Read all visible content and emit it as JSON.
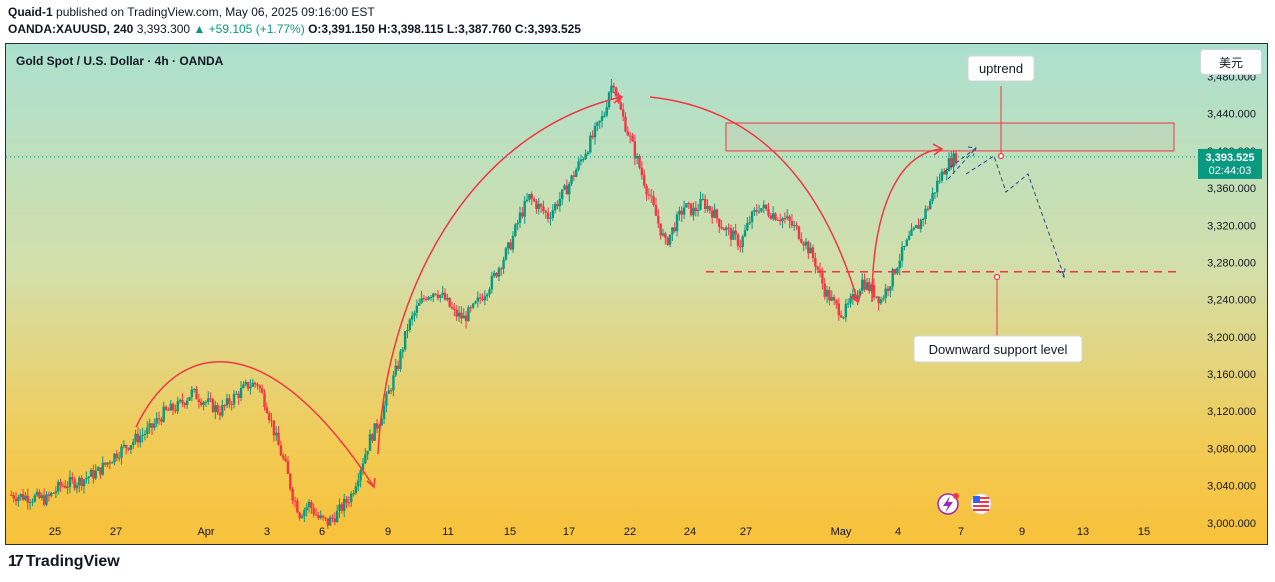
{
  "header": {
    "line1_author": "Quaid-1",
    "line1_rest": "published on TradingView.com, May 06, 2025 09:16:00 EST",
    "symbol": "OANDA:XAUUSD, 240",
    "last": "3,393.300",
    "change": "▲ +59.105 (+1.77%)",
    "o": "O:3,391.150",
    "h": "H:3,398.115",
    "l": "L:3,387.760",
    "c": "C:3,393.525"
  },
  "chart_title": "Gold Spot / U.S. Dollar · 4h · OANDA",
  "currency_button": "美元",
  "price_badge": {
    "price": "3,393.525",
    "countdown": "02:44:03"
  },
  "annotations": {
    "uptrend_label": "uptrend",
    "support_label": "Downward support level"
  },
  "footer": {
    "logo_text": "TradingView"
  },
  "colors": {
    "up": "#089981",
    "down": "#f23645",
    "drawing": "#f23645",
    "projection": "#2a4a8a",
    "badge": "#089981"
  },
  "chart_data": {
    "type": "candlestick",
    "title": "Gold Spot / U.S. Dollar · 4h · OANDA",
    "ylim": [
      2975,
      3515
    ],
    "y_ticks": [
      3000,
      3040,
      3080,
      3120,
      3160,
      3200,
      3240,
      3280,
      3320,
      3360,
      3400,
      3440,
      3480
    ],
    "y_tick_labels": [
      "3,000.000",
      "3,040.000",
      "3,080.000",
      "3,120.000",
      "3,160.000",
      "3,200.000",
      "3,240.000",
      "3,280.000",
      "3,320.000",
      "3,360.000",
      "3,400.000",
      "3,440.000",
      "3,480.000"
    ],
    "x_tick_labels": [
      "25",
      "27",
      "Apr",
      "3",
      "6",
      "9",
      "11",
      "15",
      "17",
      "22",
      "24",
      "27",
      "May",
      "4",
      "7",
      "9",
      "13",
      "15"
    ],
    "last_price": 3393.525,
    "resistance_zone": [
      3400,
      3430
    ],
    "support_level": 3270,
    "close_path": [
      [
        0,
        3030
      ],
      [
        8,
        3028
      ],
      [
        16,
        3025
      ],
      [
        22,
        3040
      ],
      [
        30,
        3045
      ],
      [
        38,
        3055
      ],
      [
        46,
        3075
      ],
      [
        54,
        3090
      ],
      [
        60,
        3100
      ],
      [
        66,
        3118
      ],
      [
        72,
        3125
      ],
      [
        78,
        3140
      ],
      [
        84,
        3130
      ],
      [
        90,
        3120
      ],
      [
        96,
        3135
      ],
      [
        102,
        3148
      ],
      [
        106,
        3150
      ],
      [
        110,
        3125
      ],
      [
        114,
        3090
      ],
      [
        118,
        3060
      ],
      [
        121,
        3030
      ],
      [
        124,
        3010
      ],
      [
        128,
        3020
      ],
      [
        132,
        3005
      ],
      [
        136,
        3000
      ],
      [
        140,
        3010
      ],
      [
        146,
        3030
      ],
      [
        150,
        3060
      ],
      [
        154,
        3090
      ],
      [
        158,
        3110
      ],
      [
        162,
        3140
      ],
      [
        166,
        3170
      ],
      [
        170,
        3210
      ],
      [
        174,
        3230
      ],
      [
        178,
        3245
      ],
      [
        182,
        3250
      ],
      [
        186,
        3240
      ],
      [
        190,
        3225
      ],
      [
        194,
        3220
      ],
      [
        198,
        3230
      ],
      [
        202,
        3245
      ],
      [
        206,
        3260
      ],
      [
        210,
        3280
      ],
      [
        214,
        3300
      ],
      [
        218,
        3330
      ],
      [
        222,
        3350
      ],
      [
        226,
        3340
      ],
      [
        230,
        3330
      ],
      [
        234,
        3345
      ],
      [
        238,
        3360
      ],
      [
        242,
        3380
      ],
      [
        246,
        3400
      ],
      [
        250,
        3420
      ],
      [
        254,
        3440
      ],
      [
        256,
        3465
      ],
      [
        258,
        3475
      ],
      [
        260,
        3450
      ],
      [
        264,
        3420
      ],
      [
        268,
        3390
      ],
      [
        272,
        3360
      ],
      [
        276,
        3330
      ],
      [
        280,
        3300
      ],
      [
        284,
        3320
      ],
      [
        288,
        3340
      ],
      [
        292,
        3335
      ],
      [
        296,
        3345
      ],
      [
        300,
        3335
      ],
      [
        304,
        3320
      ],
      [
        308,
        3310
      ],
      [
        312,
        3300
      ],
      [
        316,
        3325
      ],
      [
        320,
        3340
      ],
      [
        324,
        3335
      ],
      [
        328,
        3330
      ],
      [
        332,
        3325
      ],
      [
        336,
        3315
      ],
      [
        340,
        3300
      ],
      [
        344,
        3280
      ],
      [
        348,
        3250
      ],
      [
        352,
        3235
      ],
      [
        356,
        3225
      ],
      [
        360,
        3240
      ],
      [
        364,
        3260
      ],
      [
        368,
        3250
      ],
      [
        372,
        3240
      ],
      [
        376,
        3260
      ],
      [
        380,
        3285
      ],
      [
        384,
        3305
      ],
      [
        388,
        3320
      ],
      [
        392,
        3340
      ],
      [
        396,
        3365
      ],
      [
        400,
        3385
      ],
      [
        404,
        3393.525
      ]
    ]
  }
}
